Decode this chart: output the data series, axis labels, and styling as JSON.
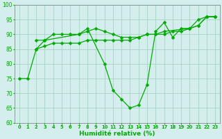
{
  "x": [
    0,
    1,
    2,
    3,
    4,
    5,
    6,
    7,
    8,
    9,
    10,
    11,
    12,
    13,
    14,
    15,
    16,
    17,
    18,
    19,
    20,
    21,
    22,
    23
  ],
  "line_curvy": [
    null,
    null,
    85,
    88,
    90,
    90,
    90,
    90,
    92,
    null,
    80,
    71,
    68,
    65,
    66,
    73,
    91,
    94,
    89,
    92,
    92,
    95,
    96,
    96
  ],
  "line_upper": [
    null,
    null,
    88,
    88,
    null,
    null,
    null,
    90,
    91,
    92,
    91,
    90,
    89,
    89,
    89,
    90,
    90,
    91,
    null,
    null,
    92,
    93,
    96,
    96
  ],
  "line_lower": [
    75,
    75,
    null,
    null,
    null,
    null,
    null,
    null,
    null,
    null,
    null,
    null,
    null,
    null,
    null,
    null,
    null,
    null,
    null,
    null,
    null,
    null,
    null,
    null
  ],
  "line_trend": [
    75,
    75,
    85,
    86,
    87,
    87,
    87,
    87,
    88,
    88,
    88,
    88,
    88,
    88,
    89,
    90,
    90,
    90,
    91,
    91,
    92,
    93,
    96,
    96
  ],
  "xlabel": "Humidité relative (%)",
  "ylim": [
    60,
    100
  ],
  "xlim": [
    -0.5,
    23.5
  ],
  "yticks": [
    60,
    65,
    70,
    75,
    80,
    85,
    90,
    95,
    100
  ],
  "xticks": [
    0,
    1,
    2,
    3,
    4,
    5,
    6,
    7,
    8,
    9,
    10,
    11,
    12,
    13,
    14,
    15,
    16,
    17,
    18,
    19,
    20,
    21,
    22,
    23
  ],
  "line_color": "#00aa00",
  "bg_color": "#d4eeed",
  "grid_color": "#a0ccbb",
  "markersize": 2.5,
  "linewidth": 0.9
}
